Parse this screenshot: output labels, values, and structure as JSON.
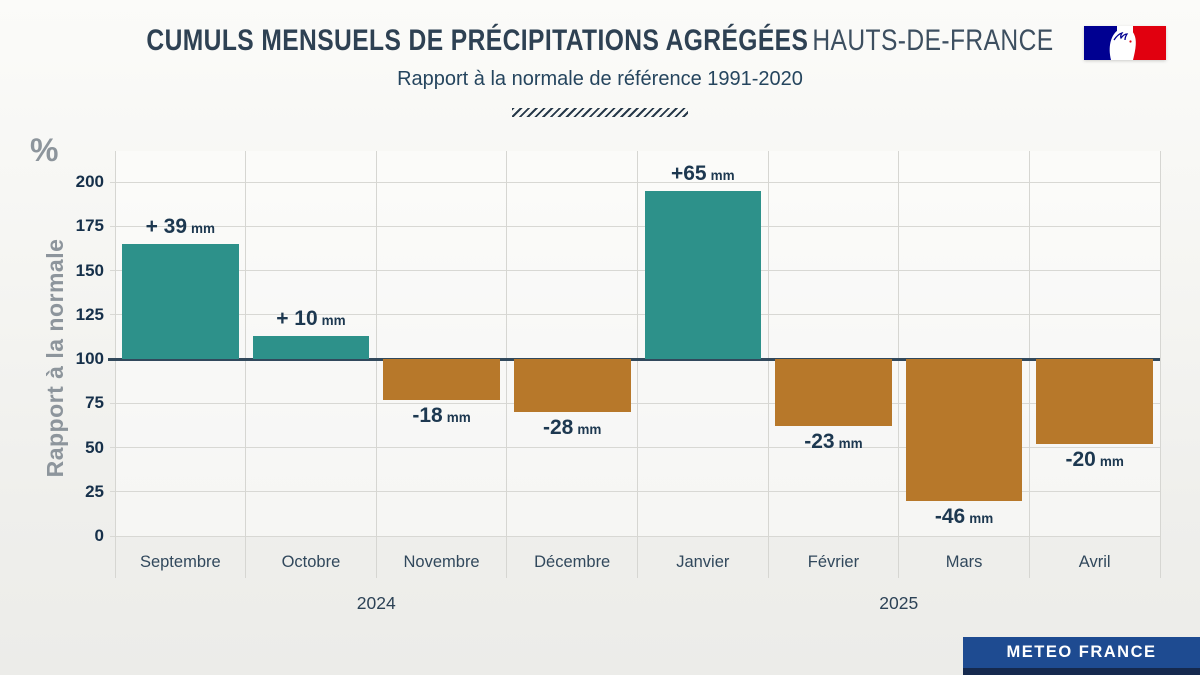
{
  "header": {
    "title_bold": "CUMULS MENSUELS DE PRÉCIPITATIONS AGRÉGÉES",
    "title_light": "HAUTS-DE-FRANCE",
    "subtitle": "Rapport à la normale de référence 1991-2020"
  },
  "chart_data": {
    "type": "bar",
    "categories": [
      "Septembre",
      "Octobre",
      "Novembre",
      "Décembre",
      "Janvier",
      "Février",
      "Mars",
      "Avril"
    ],
    "values": [
      165,
      113,
      77,
      70,
      195,
      62,
      20,
      52
    ],
    "bar_labels": [
      "+ 39",
      "+ 10",
      "-18",
      "-28",
      "+65",
      "-23",
      "-46",
      "-20"
    ],
    "bar_label_unit": "mm",
    "baseline": 100,
    "y_unit": "%",
    "ylabel": "Rapport à la normale",
    "yticks": [
      0,
      25,
      50,
      75,
      100,
      125,
      150,
      175,
      200
    ],
    "ylim": [
      0,
      217
    ],
    "grid": "on",
    "legend": "none",
    "year_groups": [
      {
        "label": "2024",
        "span": [
          0,
          3
        ]
      },
      {
        "label": "2025",
        "span": [
          4,
          7
        ]
      }
    ],
    "colors": {
      "above_normal": "#2d918a",
      "below_normal": "#b7782a",
      "baseline_line": "#32495c",
      "gridline": "#d8d8d4"
    }
  },
  "logo": {
    "name": "republique-francaise-marianne"
  },
  "footer": {
    "brand": "METEO FRANCE"
  }
}
